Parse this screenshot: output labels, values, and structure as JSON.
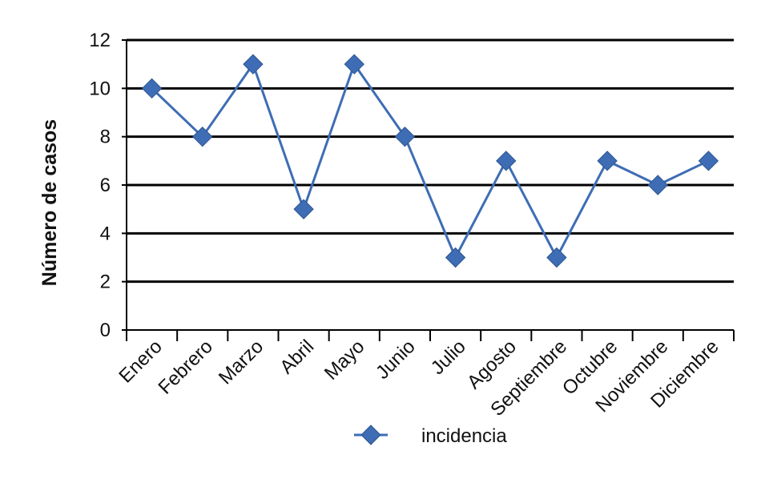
{
  "chart_data": {
    "type": "line",
    "title": "",
    "xlabel": "",
    "ylabel": "Número de casos",
    "ylim": [
      0,
      12
    ],
    "yticks": [
      0,
      2,
      4,
      6,
      8,
      10,
      12
    ],
    "grid": true,
    "legend_position": "bottom",
    "categories": [
      "Enero",
      "Febrero",
      "Marzo",
      "Abril",
      "Mayo",
      "Junio",
      "Julio",
      "Agosto",
      "Septiembre",
      "Octubre",
      "Noviembre",
      "Diciembre"
    ],
    "series": [
      {
        "name": "incidencia",
        "color": "#3e6db5",
        "values": [
          10,
          8,
          11,
          5,
          11,
          8,
          3,
          7,
          3,
          7,
          6,
          7
        ]
      }
    ]
  }
}
